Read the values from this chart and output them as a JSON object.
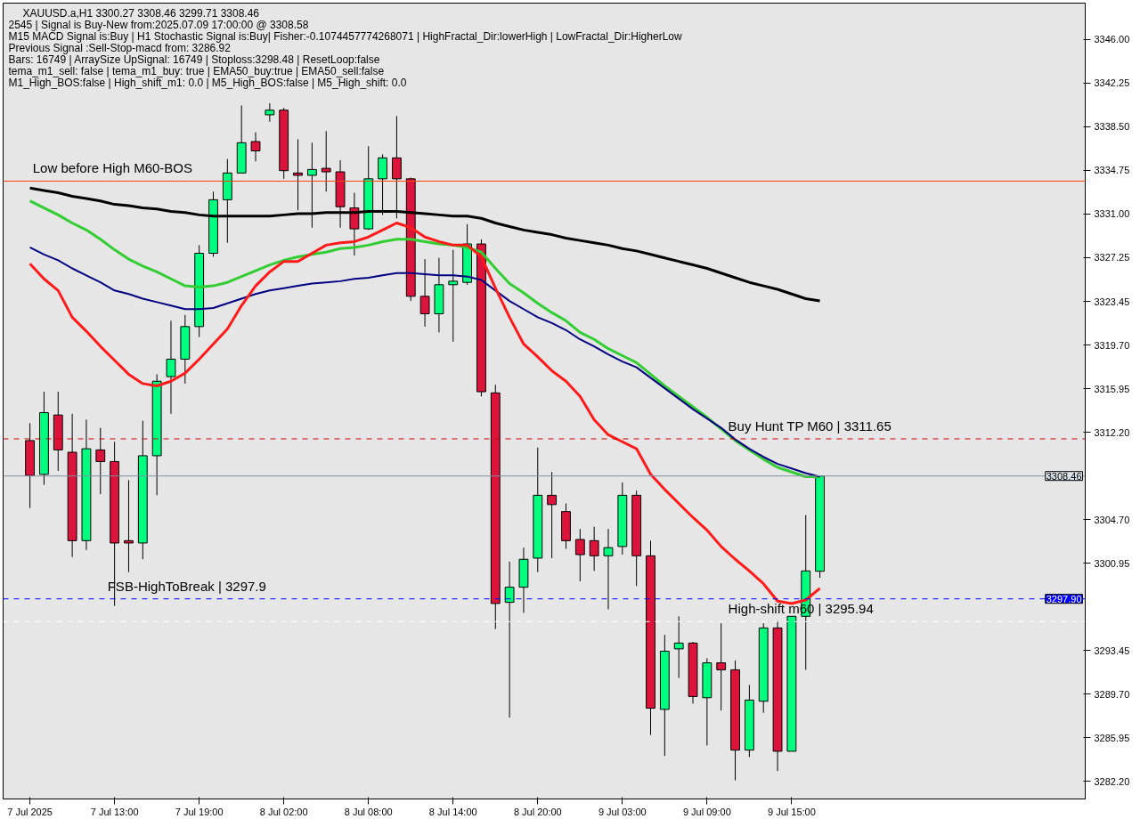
{
  "chart_data": {
    "type": "candlestick",
    "title": "XAUUSD.a,H1  3300.27 3308.46 3299.71 3308.46",
    "annotations": [
      "2545 | Signal is Buy-New from:2025.07.09 17:00:00 @ 3308.58",
      "M15 MACD Signal is:Buy | H1 Stochastic Signal is:Buy| Fisher:-0.1074457774268071 | HighFractal_Dir:lowerHigh | LowFractal_Dir:HigherLow",
      "Previous Signal :Sell-Stop-macd from: 3286.92",
      "Bars: 16749 | ArraySize UpSignal: 16749 | Stoploss:3298.48 | ResetLoop:false",
      "tema_m1_sell: false | tema_m1_buy: true | EMA50_buy:true | EMA50_sell:false",
      "M1_High_BOS:false | High_shift_m1: 0.0 | M5_High_BOS:false | M5_High_shift: 0.0",
      {
        "text": "3308.46",
        "y": 3308.46
      },
      {
        "text": "3297.90",
        "y": 3297.9
      }
    ],
    "categories": [
      "7 Jul 2025",
      null,
      null,
      null,
      null,
      null,
      "7 Jul 13:00",
      null,
      null,
      null,
      null,
      null,
      "7 Jul 19:00",
      null,
      null,
      null,
      null,
      null,
      "8 Jul 02:00",
      null,
      null,
      null,
      null,
      null,
      "8 Jul 08:00",
      null,
      null,
      null,
      null,
      null,
      "8 Jul 14:00",
      null,
      null,
      null,
      null,
      null,
      "8 Jul 20:00",
      null,
      null,
      null,
      null,
      null,
      "9 Jul 03:00",
      null,
      null,
      null,
      null,
      null,
      "9 Jul 09:00",
      null,
      null,
      null,
      null,
      null,
      "9 Jul 15:00",
      null,
      null
    ],
    "ohlc": [
      [
        3311.5,
        3313.0,
        3305.7,
        3308.5
      ],
      [
        3308.6,
        3315.7,
        3307.7,
        3313.9
      ],
      [
        3313.7,
        3315.7,
        3308.9,
        3310.7
      ],
      [
        3310.5,
        3313.8,
        3301.5,
        3302.9
      ],
      [
        3302.9,
        3313.3,
        3302.1,
        3310.8
      ],
      [
        3310.7,
        3312.6,
        3306.9,
        3309.7
      ],
      [
        3309.7,
        3311.4,
        3297.3,
        3302.7
      ],
      [
        3302.9,
        3308.1,
        3300.2,
        3302.7
      ],
      [
        3302.7,
        3313.2,
        3301.3,
        3310.2
      ],
      [
        3310.2,
        3317.2,
        3306.8,
        3316.6
      ],
      [
        3317.0,
        3321.8,
        3313.8,
        3318.5
      ],
      [
        3318.5,
        3322.3,
        3316.4,
        3321.3
      ],
      [
        3321.3,
        3328.3,
        3320.4,
        3327.6
      ],
      [
        3327.6,
        3332.9,
        3327.3,
        3332.2
      ],
      [
        3332.2,
        3335.7,
        3328.5,
        3334.5
      ],
      [
        3334.5,
        3340.3,
        3334.5,
        3337.1
      ],
      [
        3337.2,
        3338.0,
        3335.5,
        3336.4
      ],
      [
        3339.5,
        3340.5,
        3338.9,
        3339.9
      ],
      [
        3339.9,
        3340.1,
        3334.0,
        3334.7
      ],
      [
        3334.5,
        3337.4,
        3331.3,
        3334.3
      ],
      [
        3334.3,
        3337.1,
        3329.8,
        3334.8
      ],
      [
        3334.9,
        3338.1,
        3332.9,
        3334.6
      ],
      [
        3334.6,
        3335.6,
        3329.8,
        3331.6
      ],
      [
        3331.5,
        3332.8,
        3327.4,
        3329.7
      ],
      [
        3329.7,
        3336.8,
        3329.6,
        3334.0
      ],
      [
        3334.0,
        3336.1,
        3330.9,
        3335.8
      ],
      [
        3335.8,
        3339.4,
        3330.6,
        3334.0
      ],
      [
        3334.0,
        3334.1,
        3323.5,
        3323.9
      ],
      [
        3323.9,
        3327.1,
        3321.3,
        3322.4
      ],
      [
        3322.4,
        3327.2,
        3320.8,
        3324.9
      ],
      [
        3324.9,
        3327.9,
        3320.0,
        3325.2
      ],
      [
        3325.1,
        3330.1,
        3324.9,
        3328.4
      ],
      [
        3328.4,
        3328.8,
        3315.3,
        3315.7
      ],
      [
        3315.6,
        3316.3,
        3295.3,
        3297.5
      ],
      [
        3297.6,
        3301.1,
        3287.7,
        3298.9
      ],
      [
        3298.9,
        3302.3,
        3296.7,
        3301.3
      ],
      [
        3301.4,
        3310.9,
        3300.2,
        3306.8
      ],
      [
        3306.8,
        3308.8,
        3301.4,
        3306.0
      ],
      [
        3305.4,
        3306.1,
        3302.2,
        3302.9
      ],
      [
        3303.0,
        3303.9,
        3299.4,
        3301.7
      ],
      [
        3302.9,
        3304.1,
        3300.3,
        3301.6
      ],
      [
        3301.6,
        3303.9,
        3297.0,
        3302.3
      ],
      [
        3302.4,
        3307.9,
        3301.7,
        3306.8
      ],
      [
        3306.8,
        3307.2,
        3299.0,
        3301.6
      ],
      [
        3301.6,
        3302.9,
        3286.2,
        3288.5
      ],
      [
        3288.4,
        3294.8,
        3284.4,
        3293.4
      ],
      [
        3293.6,
        3296.4,
        3291.1,
        3294.1
      ],
      [
        3294.1,
        3294.2,
        3288.9,
        3289.5
      ],
      [
        3289.4,
        3292.8,
        3285.3,
        3292.4
      ],
      [
        3292.4,
        3295.8,
        3288.3,
        3291.8
      ],
      [
        3291.8,
        3292.6,
        3282.3,
        3284.9
      ],
      [
        3284.9,
        3290.5,
        3284.3,
        3289.2
      ],
      [
        3289.1,
        3295.8,
        3288.1,
        3295.4
      ],
      [
        3295.4,
        3296.0,
        3283.1,
        3284.8
      ],
      [
        3284.8,
        3296.4,
        3284.8,
        3296.4
      ],
      [
        3296.4,
        3305.1,
        3291.8,
        3300.3
      ],
      [
        3300.27,
        3308.46,
        3299.71,
        3308.46
      ]
    ],
    "colors": [
      "#dc143c",
      "#00ff7f",
      "#dc143c",
      "#dc143c",
      "#00ff7f",
      "#dc143c",
      "#dc143c",
      "#dc143c",
      "#00ff7f",
      "#00ff7f",
      "#00ff7f",
      "#00ff7f",
      "#00ff7f",
      "#00ff7f",
      "#00ff7f",
      "#00ff7f",
      "#dc143c",
      "#00ff7f",
      "#dc143c",
      "#dc143c",
      "#00ff7f",
      "#dc143c",
      "#dc143c",
      "#dc143c",
      "#00ff7f",
      "#00ff7f",
      "#dc143c",
      "#dc143c",
      "#dc143c",
      "#00ff7f",
      "#00ff7f",
      "#00ff7f",
      "#dc143c",
      "#dc143c",
      "#00ff7f",
      "#00ff7f",
      "#00ff7f",
      "#dc143c",
      "#dc143c",
      "#dc143c",
      "#dc143c",
      "#00ff7f",
      "#00ff7f",
      "#dc143c",
      "#dc143c",
      "#00ff7f",
      "#00ff7f",
      "#dc143c",
      "#00ff7f",
      "#dc143c",
      "#dc143c",
      "#00ff7f",
      "#00ff7f",
      "#dc143c",
      "#00ff7f",
      "#00ff7f",
      "#00ff7f"
    ],
    "series": [
      {
        "type": "line",
        "color": "#000000",
        "values": [
          3333.2,
          3333.0,
          3332.8,
          3332.5,
          3332.3,
          3332.1,
          3331.8,
          3331.7,
          3331.5,
          3331.4,
          3331.2,
          3331.1,
          3330.9,
          3330.8,
          3330.8,
          3330.8,
          3330.8,
          3330.8,
          3330.9,
          3331.0,
          3331.0,
          3331.1,
          3331.1,
          3331.1,
          3331.2,
          3331.2,
          3331.2,
          3331.1,
          3331.0,
          3330.9,
          3330.8,
          3330.8,
          3330.6,
          3330.2,
          3329.9,
          3329.6,
          3329.4,
          3329.2,
          3328.9,
          3328.7,
          3328.5,
          3328.3,
          3328.0,
          3327.8,
          3327.5,
          3327.2,
          3326.9,
          3326.6,
          3326.3,
          3325.9,
          3325.5,
          3325.1,
          3324.8,
          3324.5,
          3324.1,
          3323.7,
          3323.5
        ]
      },
      {
        "type": "line",
        "color": "#32cd32",
        "values": [
          3332.1,
          3331.5,
          3330.9,
          3330.2,
          3329.6,
          3328.8,
          3327.9,
          3327.1,
          3326.5,
          3326.0,
          3325.4,
          3324.8,
          3324.7,
          3324.8,
          3325.1,
          3325.6,
          3326.1,
          3326.6,
          3327.0,
          3327.3,
          3327.5,
          3327.7,
          3328.0,
          3328.1,
          3328.3,
          3328.6,
          3328.8,
          3328.8,
          3328.6,
          3328.4,
          3328.3,
          3328.1,
          3327.7,
          3326.3,
          3325.0,
          3324.2,
          3323.3,
          3322.5,
          3321.8,
          3320.8,
          3320.2,
          3319.4,
          3318.8,
          3318.2,
          3317.2,
          3316.2,
          3315.3,
          3314.4,
          3313.5,
          3312.5,
          3311.5,
          3310.7,
          3309.9,
          3309.2,
          3308.8,
          3308.4,
          3308.4
        ]
      },
      {
        "type": "line",
        "color": "#000080",
        "values": [
          3328.1,
          3327.5,
          3327.0,
          3326.3,
          3325.7,
          3325.1,
          3324.4,
          3324.1,
          3323.7,
          3323.4,
          3323.1,
          3322.8,
          3322.8,
          3322.9,
          3323.3,
          3323.7,
          3324.1,
          3324.4,
          3324.6,
          3324.8,
          3325.0,
          3325.1,
          3325.2,
          3325.4,
          3325.5,
          3325.7,
          3325.9,
          3325.9,
          3325.8,
          3325.7,
          3325.7,
          3325.6,
          3325.3,
          3324.4,
          3323.5,
          3322.8,
          3322.1,
          3321.6,
          3321.0,
          3320.2,
          3319.6,
          3318.9,
          3318.3,
          3317.8,
          3316.9,
          3316.0,
          3315.1,
          3314.2,
          3313.4,
          3312.6,
          3311.6,
          3310.8,
          3310.1,
          3309.5,
          3309.1,
          3308.7,
          3308.4
        ]
      },
      {
        "type": "line",
        "color": "#ff1a1a",
        "values": [
          3326.7,
          3325.4,
          3324.4,
          3322.1,
          3320.9,
          3319.6,
          3318.4,
          3317.2,
          3316.4,
          3316.2,
          3316.6,
          3317.3,
          3318.5,
          3319.8,
          3321.1,
          3323.1,
          3324.8,
          3326.0,
          3326.9,
          3326.9,
          3327.6,
          3328.3,
          3328.5,
          3328.6,
          3329.0,
          3329.6,
          3330.2,
          3329.8,
          3329.0,
          3328.6,
          3328.3,
          3328.3,
          3327.3,
          3324.6,
          3322.1,
          3319.8,
          3318.7,
          3317.5,
          3316.6,
          3315.3,
          3313.3,
          3312.0,
          3311.4,
          3310.8,
          3308.6,
          3307.3,
          3306.1,
          3304.9,
          3303.8,
          3302.4,
          3301.3,
          3300.3,
          3299.2,
          3297.7,
          3297.5,
          3297.8,
          3298.8
        ]
      }
    ],
    "ref_lines": [
      {
        "axis": "y",
        "value": 3333.8,
        "label": "Low before High     M60-BOS",
        "color": "#ff4500",
        "line_style": "solid"
      },
      {
        "axis": "y",
        "value": 3297.9,
        "label": "FSB-HighToBreak | 3297.9",
        "color": "#0000ff",
        "line_style": "dashed"
      },
      {
        "axis": "y",
        "value": 3311.65,
        "label": "Buy Hunt TP M60 | 3311.65",
        "color": "#cc0000",
        "line_style": "dashed"
      },
      {
        "axis": "y",
        "value": 3295.94,
        "label": "High-shift m60 | 3295.94",
        "color": "#ffffff",
        "line_style": "dashed"
      },
      {
        "axis": "y",
        "value": 3308.46,
        "color": "#8090a0",
        "line_style": "solid"
      }
    ],
    "ylim": [
      3280.7,
      3349.1
    ],
    "yticks": [
      {
        "value": 3282.2,
        "label": "3282.20"
      },
      {
        "value": 3285.95,
        "label": "3285.95"
      },
      {
        "value": 3289.7,
        "label": "3289.70"
      },
      {
        "value": 3293.45,
        "label": "3293.45"
      },
      {
        "value": 3300.95,
        "label": "3300.95"
      },
      {
        "value": 3304.7,
        "label": "3304.70"
      },
      {
        "value": 3312.2,
        "label": "3312.20"
      },
      {
        "value": 3315.95,
        "label": "3315.95"
      },
      {
        "value": 3319.7,
        "label": "3319.70"
      },
      {
        "value": 3323.45,
        "label": "3323.45"
      },
      {
        "value": 3327.25,
        "label": "3327.25"
      },
      {
        "value": 3331.0,
        "label": "3331.00"
      },
      {
        "value": 3334.75,
        "label": "3334.75"
      },
      {
        "value": 3338.5,
        "label": "3338.50"
      },
      {
        "value": 3342.25,
        "label": "3342.25"
      },
      {
        "value": 3346.0,
        "label": "3346.00"
      }
    ],
    "grid": false
  }
}
